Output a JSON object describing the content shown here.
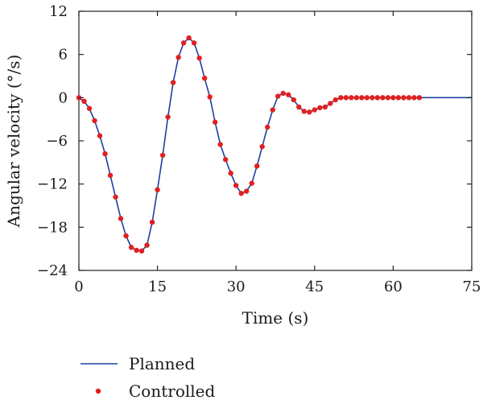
{
  "chart_data": {
    "type": "line",
    "xlabel": "Time (s)",
    "ylabel": "Angular velocity (°/s)",
    "xlim": [
      0,
      75
    ],
    "ylim": [
      -24,
      12
    ],
    "x_ticks": [
      0,
      15,
      30,
      45,
      60,
      75
    ],
    "y_ticks": [
      12,
      6,
      0,
      -6,
      -12,
      -18,
      -24
    ],
    "x_tick_labels": [
      "0",
      "15",
      "30",
      "45",
      "60",
      "75"
    ],
    "y_tick_labels": [
      "12",
      "6",
      "0",
      "−6",
      "−12",
      "−18",
      "−24"
    ],
    "grid": false,
    "legend_position": "bottom-left",
    "series": [
      {
        "name": "Planned",
        "style": "line",
        "color": "#1f3fa0",
        "points": [
          [
            0,
            0
          ],
          [
            1,
            -0.5
          ],
          [
            2,
            -1.5
          ],
          [
            3,
            -3.2
          ],
          [
            4,
            -5.3
          ],
          [
            5,
            -7.8
          ],
          [
            6,
            -10.8
          ],
          [
            7,
            -13.8
          ],
          [
            8,
            -16.8
          ],
          [
            9,
            -19.2
          ],
          [
            10,
            -20.8
          ],
          [
            11,
            -21.2
          ],
          [
            12,
            -21.3
          ],
          [
            13,
            -20.5
          ],
          [
            14,
            -17.3
          ],
          [
            15,
            -12.8
          ],
          [
            16,
            -8.0
          ],
          [
            17,
            -2.7
          ],
          [
            18,
            2.1
          ],
          [
            19,
            5.6
          ],
          [
            20,
            7.6
          ],
          [
            21,
            8.3
          ],
          [
            22,
            7.6
          ],
          [
            23,
            5.5
          ],
          [
            24,
            2.7
          ],
          [
            25,
            0.1
          ],
          [
            26,
            -3.4
          ],
          [
            27,
            -6.5
          ],
          [
            28,
            -8.6
          ],
          [
            29,
            -10.5
          ],
          [
            30,
            -12.2
          ],
          [
            31,
            -13.3
          ],
          [
            32,
            -13.0
          ],
          [
            33,
            -11.9
          ],
          [
            34,
            -9.5
          ],
          [
            35,
            -6.8
          ],
          [
            36,
            -4.1
          ],
          [
            37,
            -1.7
          ],
          [
            38,
            0.2
          ],
          [
            39,
            0.6
          ],
          [
            40,
            0.4
          ],
          [
            41,
            -0.3
          ],
          [
            42,
            -1.3
          ],
          [
            43,
            -1.9
          ],
          [
            44,
            -2.0
          ],
          [
            45,
            -1.7
          ],
          [
            46,
            -1.4
          ],
          [
            47,
            -1.3
          ],
          [
            48,
            -0.8
          ],
          [
            49,
            -0.3
          ],
          [
            50,
            0
          ],
          [
            55,
            0
          ],
          [
            60,
            0
          ],
          [
            65,
            0
          ],
          [
            70,
            0
          ],
          [
            75,
            0
          ]
        ]
      },
      {
        "name": "Controlled",
        "style": "markers",
        "color": "#e02020",
        "points": [
          [
            0,
            0
          ],
          [
            1,
            -0.5
          ],
          [
            2,
            -1.5
          ],
          [
            3,
            -3.2
          ],
          [
            4,
            -5.3
          ],
          [
            5,
            -7.8
          ],
          [
            6,
            -10.8
          ],
          [
            7,
            -13.8
          ],
          [
            8,
            -16.8
          ],
          [
            9,
            -19.2
          ],
          [
            10,
            -20.8
          ],
          [
            11,
            -21.2
          ],
          [
            12,
            -21.3
          ],
          [
            13,
            -20.5
          ],
          [
            14,
            -17.3
          ],
          [
            15,
            -12.8
          ],
          [
            16,
            -8.0
          ],
          [
            17,
            -2.7
          ],
          [
            18,
            2.1
          ],
          [
            19,
            5.6
          ],
          [
            20,
            7.6
          ],
          [
            21,
            8.3
          ],
          [
            22,
            7.6
          ],
          [
            23,
            5.5
          ],
          [
            24,
            2.7
          ],
          [
            25,
            0.1
          ],
          [
            26,
            -3.4
          ],
          [
            27,
            -6.5
          ],
          [
            28,
            -8.6
          ],
          [
            29,
            -10.5
          ],
          [
            30,
            -12.2
          ],
          [
            31,
            -13.3
          ],
          [
            32,
            -13.0
          ],
          [
            33,
            -11.9
          ],
          [
            34,
            -9.5
          ],
          [
            35,
            -6.8
          ],
          [
            36,
            -4.1
          ],
          [
            37,
            -1.7
          ],
          [
            38,
            0.2
          ],
          [
            39,
            0.6
          ],
          [
            40,
            0.4
          ],
          [
            41,
            -0.3
          ],
          [
            42,
            -1.3
          ],
          [
            43,
            -1.9
          ],
          [
            44,
            -2.0
          ],
          [
            45,
            -1.7
          ],
          [
            46,
            -1.4
          ],
          [
            47,
            -1.3
          ],
          [
            48,
            -0.8
          ],
          [
            49,
            -0.3
          ],
          [
            50,
            0
          ],
          [
            51,
            0
          ],
          [
            52,
            0
          ],
          [
            53,
            0
          ],
          [
            54,
            0
          ],
          [
            55,
            0
          ],
          [
            56,
            0
          ],
          [
            57,
            0
          ],
          [
            58,
            0
          ],
          [
            59,
            0
          ],
          [
            60,
            0
          ],
          [
            61,
            0
          ],
          [
            62,
            0
          ],
          [
            63,
            0
          ],
          [
            64,
            0
          ],
          [
            65,
            0
          ]
        ]
      }
    ]
  }
}
